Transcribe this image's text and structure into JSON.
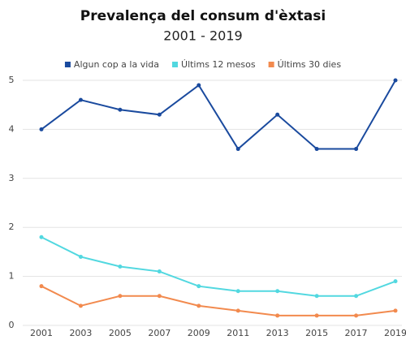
{
  "chart_data": {
    "type": "line",
    "title": "Prevalença del consum d'èxtasi",
    "subtitle": "2001 - 2019",
    "categories": [
      "2001",
      "2003",
      "2005",
      "2007",
      "2009",
      "2011",
      "2013",
      "2015",
      "2017",
      "2019"
    ],
    "series": [
      {
        "name": "Algun cop a la vida",
        "color": "#1a4a9e",
        "values": [
          4.0,
          4.6,
          4.4,
          4.3,
          4.9,
          3.6,
          4.3,
          3.6,
          3.6,
          5.0
        ]
      },
      {
        "name": "Últims 12 mesos",
        "color": "#52d8e0",
        "values": [
          1.8,
          1.4,
          1.2,
          1.1,
          0.8,
          0.7,
          0.7,
          0.6,
          0.6,
          0.9
        ]
      },
      {
        "name": "Últims 30 dies",
        "color": "#f28a4e",
        "values": [
          0.8,
          0.4,
          0.6,
          0.6,
          0.4,
          0.3,
          0.2,
          0.2,
          0.2,
          0.3
        ]
      }
    ],
    "ylim": [
      0,
      5
    ],
    "yticks": [
      0,
      1,
      2,
      3,
      4,
      5
    ],
    "grid": true,
    "legend": "top"
  }
}
